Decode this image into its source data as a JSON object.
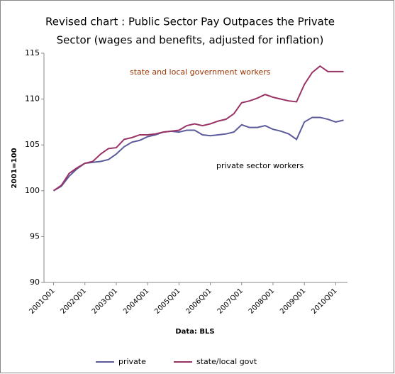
{
  "chart_data": {
    "type": "line",
    "title": [
      "Revised chart : Public Sector Pay Outpaces the Private",
      "Sector  (wages and benefits, adjusted for inflation)"
    ],
    "y_label": "2001=100",
    "x_label": "Data: BLS",
    "annotations": [
      {
        "text": "state and local government workers",
        "color": "#993300"
      },
      {
        "text": "private sector workers",
        "color": "#000000"
      }
    ],
    "categories": [
      "2001Q01",
      null,
      null,
      null,
      "2002Q01",
      null,
      null,
      null,
      "2003Q01",
      null,
      null,
      null,
      "2004Q01",
      null,
      null,
      null,
      "2005Q01",
      null,
      null,
      null,
      "2006Q01",
      null,
      null,
      null,
      "2007Q01",
      null,
      null,
      null,
      "2008Q01",
      null,
      null,
      null,
      "2009Q01",
      null,
      null,
      null,
      "2010Q01",
      null
    ],
    "series": [
      {
        "name": "private",
        "color": "#5b5b9b",
        "values": [
          100,
          100.5,
          101.6,
          102.4,
          103.0,
          103.1,
          103.2,
          103.4,
          104.0,
          104.8,
          105.3,
          105.5,
          105.9,
          106.1,
          106.4,
          106.5,
          106.4,
          106.6,
          106.6,
          106.1,
          106.0,
          106.1,
          106.2,
          106.4,
          107.2,
          106.9,
          106.9,
          107.1,
          106.7,
          106.5,
          106.2,
          105.6,
          107.5,
          108.0,
          108.0,
          107.8,
          107.5,
          107.7
        ]
      },
      {
        "name": "state/local govt",
        "color": "#993366",
        "values": [
          100,
          100.6,
          101.9,
          102.5,
          103.0,
          103.2,
          104.0,
          104.6,
          104.7,
          105.6,
          105.8,
          106.1,
          106.1,
          106.2,
          106.4,
          106.5,
          106.6,
          107.1,
          107.3,
          107.1,
          107.3,
          107.6,
          107.8,
          108.4,
          109.6,
          109.8,
          110.1,
          110.5,
          110.2,
          110.0,
          109.8,
          109.7,
          111.6,
          112.9,
          113.6,
          113.0,
          113.0,
          113.0
        ]
      }
    ],
    "ylim": [
      90,
      115
    ],
    "yticks": [
      90,
      95,
      100,
      105,
      110,
      115
    ],
    "grid": false,
    "legend": "bottom"
  }
}
